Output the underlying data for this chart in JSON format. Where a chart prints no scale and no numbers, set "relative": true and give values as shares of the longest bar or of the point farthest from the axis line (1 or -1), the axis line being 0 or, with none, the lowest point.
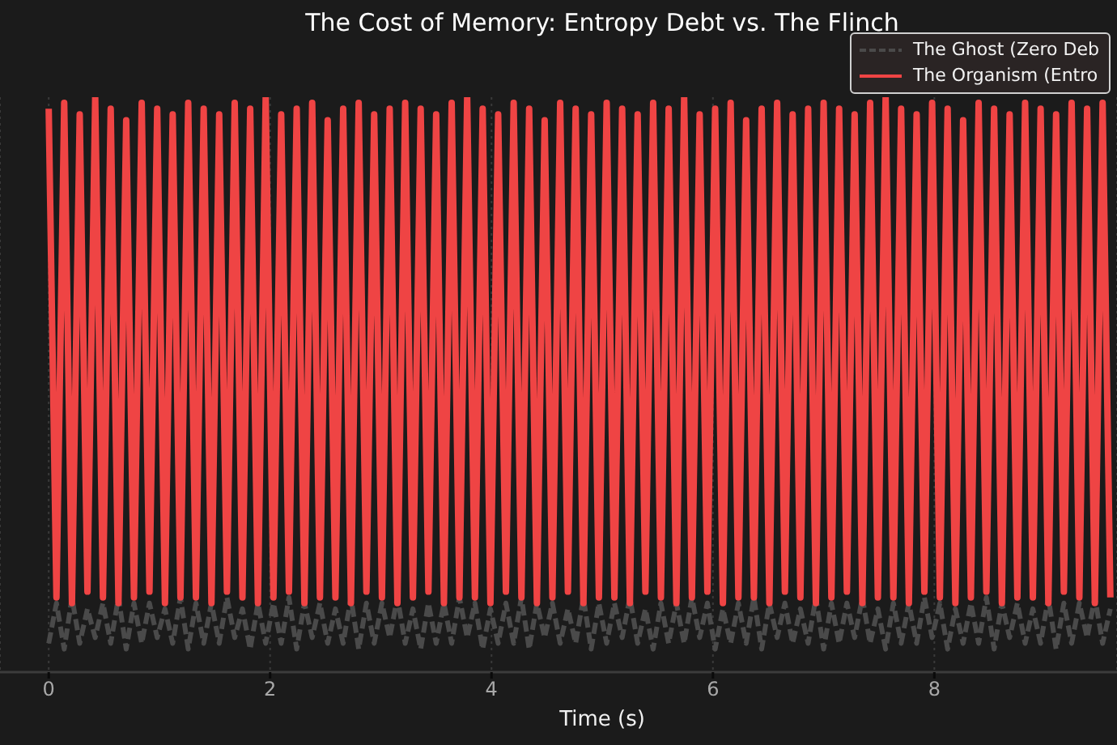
{
  "chart_data": {
    "type": "line",
    "title": "The Cost of Memory: Entropy Debt vs. The Flinch",
    "xlabel": "Time (s)",
    "relative": true,
    "xlim": [
      -0.44,
      9.65
    ],
    "xticks": [
      0,
      2,
      4,
      6,
      8
    ],
    "grid": "x",
    "legend": "top right",
    "x": [
      0,
      0.07,
      0.14,
      0.21,
      0.28,
      0.35,
      0.42,
      0.49,
      0.56,
      0.63,
      0.7,
      0.77,
      0.84,
      0.91,
      0.98,
      1.05,
      1.12,
      1.19,
      1.26,
      1.33,
      1.4,
      1.47,
      1.54,
      1.61,
      1.68,
      1.75,
      1.82,
      1.89,
      1.96,
      2.03,
      2.1,
      2.17,
      2.24,
      2.31,
      2.38,
      2.45,
      2.52,
      2.59,
      2.66,
      2.73,
      2.8,
      2.87,
      2.94,
      3.01,
      3.08,
      3.15,
      3.22,
      3.29,
      3.36,
      3.43,
      3.5,
      3.57,
      3.64,
      3.71,
      3.78,
      3.85,
      3.92,
      3.99,
      4.06,
      4.13,
      4.2,
      4.27,
      4.34,
      4.41,
      4.48,
      4.55,
      4.62,
      4.69,
      4.76,
      4.83,
      4.9,
      4.97,
      5.04,
      5.11,
      5.18,
      5.25,
      5.32,
      5.39,
      5.46,
      5.53,
      5.6,
      5.67,
      5.74,
      5.81,
      5.88,
      5.95,
      6.02,
      6.09,
      6.16,
      6.23,
      6.3,
      6.37,
      6.44,
      6.51,
      6.58,
      6.65,
      6.72,
      6.79,
      6.86,
      6.93,
      7,
      7.07,
      7.14,
      7.21,
      7.28,
      7.35,
      7.42,
      7.49,
      7.56,
      7.63,
      7.7,
      7.77,
      7.84,
      7.91,
      7.98,
      8.05,
      8.12,
      8.19,
      8.26,
      8.33,
      8.4,
      8.47,
      8.54,
      8.61,
      8.68,
      8.75,
      8.82,
      8.89,
      8.96,
      9.03,
      9.1,
      9.17,
      9.24,
      9.31,
      9.38,
      9.45,
      9.52,
      9.59
    ],
    "series": [
      {
        "name": "The Ghost (Zero Deb",
        "color": "#4a4a4a",
        "line_style": "dashed",
        "values": [
          0.05,
          0.12,
          0.04,
          0.13,
          0.05,
          0.11,
          0.06,
          0.12,
          0.05,
          0.13,
          0.04,
          0.12,
          0.05,
          0.12,
          0.06,
          0.11,
          0.05,
          0.13,
          0.04,
          0.12,
          0.05,
          0.12,
          0.05,
          0.13,
          0.06,
          0.11,
          0.04,
          0.12,
          0.05,
          0.12,
          0.05,
          0.13,
          0.04,
          0.12,
          0.06,
          0.12,
          0.05,
          0.11,
          0.05,
          0.13,
          0.04,
          0.12,
          0.05,
          0.12,
          0.06,
          0.13,
          0.05,
          0.11,
          0.04,
          0.12,
          0.05,
          0.12,
          0.05,
          0.13,
          0.06,
          0.12,
          0.04,
          0.11,
          0.05,
          0.12,
          0.05,
          0.13,
          0.04,
          0.12,
          0.06,
          0.12,
          0.05,
          0.11,
          0.05,
          0.13,
          0.04,
          0.12,
          0.05,
          0.12,
          0.06,
          0.13,
          0.05,
          0.11,
          0.04,
          0.12,
          0.05,
          0.12,
          0.05,
          0.13,
          0.06,
          0.12,
          0.04,
          0.11,
          0.05,
          0.12,
          0.05,
          0.13,
          0.04,
          0.12,
          0.06,
          0.12,
          0.05,
          0.11,
          0.05,
          0.13,
          0.04,
          0.12,
          0.05,
          0.12,
          0.06,
          0.13,
          0.05,
          0.11,
          0.04,
          0.12,
          0.05,
          0.12,
          0.05,
          0.13,
          0.06,
          0.12,
          0.04,
          0.11,
          0.05,
          0.12,
          0.05,
          0.13,
          0.04,
          0.12,
          0.06,
          0.12,
          0.05,
          0.11,
          0.05,
          0.13,
          0.04,
          0.12,
          0.05,
          0.12,
          0.06,
          0.13,
          0.05,
          0.11
        ]
      },
      {
        "name": "The Organism (Entro",
        "color": "#ef4444",
        "line_style": "solid",
        "values": [
          0.98,
          0.13,
          0.99,
          0.12,
          0.97,
          0.14,
          1,
          0.13,
          0.98,
          0.12,
          0.96,
          0.13,
          0.99,
          0.14,
          0.98,
          0.12,
          0.97,
          0.13,
          0.99,
          0.13,
          0.98,
          0.12,
          0.97,
          0.14,
          0.99,
          0.13,
          0.98,
          0.12,
          1,
          0.13,
          0.97,
          0.14,
          0.98,
          0.12,
          0.99,
          0.13,
          0.96,
          0.13,
          0.98,
          0.12,
          0.99,
          0.14,
          0.97,
          0.13,
          0.98,
          0.12,
          0.99,
          0.13,
          0.98,
          0.14,
          0.97,
          0.12,
          0.99,
          0.13,
          1,
          0.13,
          0.98,
          0.12,
          0.97,
          0.14,
          0.99,
          0.13,
          0.98,
          0.12,
          0.96,
          0.13,
          0.99,
          0.14,
          0.98,
          0.12,
          0.97,
          0.13,
          0.99,
          0.13,
          0.98,
          0.12,
          0.97,
          0.14,
          0.99,
          0.13,
          0.98,
          0.12,
          1,
          0.13,
          0.97,
          0.14,
          0.98,
          0.12,
          0.99,
          0.13,
          0.96,
          0.13,
          0.98,
          0.12,
          0.99,
          0.14,
          0.97,
          0.13,
          0.98,
          0.12,
          0.99,
          0.13,
          0.98,
          0.14,
          0.97,
          0.12,
          0.99,
          0.13,
          1,
          0.13,
          0.98,
          0.12,
          0.97,
          0.14,
          0.99,
          0.13,
          0.98,
          0.12,
          0.96,
          0.13,
          0.99,
          0.14,
          0.98,
          0.12,
          0.97,
          0.13,
          0.99,
          0.13,
          0.98,
          0.12,
          0.97,
          0.14,
          0.99,
          0.13,
          0.98,
          0.12,
          0.99,
          0.13
        ]
      }
    ]
  }
}
